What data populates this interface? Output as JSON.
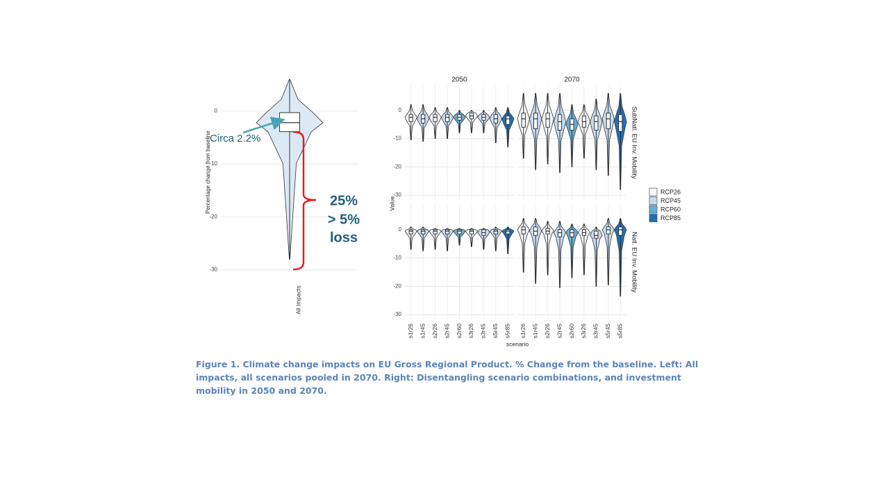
{
  "caption": "Figure 1. Climate change impacts on EU Gross Regional Product. % Change from the baseline. Left: All impacts, all scenarios pooled in 2070. Right: Disentangling scenario combinations, and investment mobility in 2050 and 2070.",
  "chart_data": [
    {
      "type": "violin",
      "ylabel": "Percentage change from baseline",
      "categories": [
        "All Impacts"
      ],
      "color": "#dce9f5",
      "stats": [
        [
          -28,
          -3.9,
          -2.2,
          -0.3,
          6
        ]
      ],
      "ylim": [
        -31.5,
        5.5
      ],
      "yticks": [
        0,
        -10,
        -20,
        -30
      ],
      "grid": true,
      "annotations": [
        "Circa 2.2%",
        "25%",
        "> 5%",
        "loss"
      ]
    },
    {
      "type": "violin",
      "ylabel": "Value",
      "xlabel": "scenario",
      "columns": [
        "2050",
        "2070"
      ],
      "rows": [
        "SubNatl. EU Inv. Mobility",
        "Natl. EU Inv. Mobility"
      ],
      "categories": [
        "s1r26",
        "s1r45",
        "s2r26",
        "s2r45",
        "s2r60",
        "s3r26",
        "s3r45",
        "s5r45",
        "s5r85"
      ],
      "colors": [
        "#f4f7fb",
        "#c6dbef",
        "#f4f7fb",
        "#c6dbef",
        "#6baed6",
        "#f4f7fb",
        "#c6dbef",
        "#c6dbef",
        "#2171b5"
      ],
      "legend": [
        {
          "name": "RCP26",
          "color": "#f4f7fb"
        },
        {
          "name": "RCP45",
          "color": "#c6dbef"
        },
        {
          "name": "RCP60",
          "color": "#6baed6"
        },
        {
          "name": "RCP85",
          "color": "#2171b5"
        }
      ],
      "ylim": [
        -31.7,
        8.8
      ],
      "yticks": [
        0,
        -10,
        -20,
        -30
      ],
      "grid": true,
      "panels": [
        [
          [
            [
              -10.5,
              -4,
              -2.5,
              -1.5,
              2
            ],
            [
              -11,
              -4.5,
              -3,
              -1.5,
              2
            ],
            [
              -10,
              -4,
              -2.5,
              -1.5,
              1
            ],
            [
              -10,
              -4,
              -2.5,
              -1.5,
              1
            ],
            [
              -8,
              -3.5,
              -2.5,
              -1.5,
              0
            ],
            [
              -8,
              -3,
              -2,
              -1,
              0
            ],
            [
              -8,
              -3.5,
              -2.5,
              -1.5,
              0
            ],
            [
              -11.5,
              -4.5,
              -3,
              -1.5,
              1
            ],
            [
              -13,
              -5,
              -3,
              -2,
              1
            ]
          ],
          [
            [
              -17,
              -6,
              -3,
              -1,
              6
            ],
            [
              -21,
              -6.5,
              -3,
              -1,
              6
            ],
            [
              -19,
              -6,
              -3,
              -1,
              6
            ],
            [
              -22,
              -7,
              -4,
              -1.5,
              6
            ],
            [
              -20,
              -7,
              -5,
              -3,
              2
            ],
            [
              -17,
              -6,
              -4,
              -2,
              2
            ],
            [
              -21,
              -7,
              -4,
              -2,
              4
            ],
            [
              -23,
              -6.5,
              -3,
              -1,
              6
            ],
            [
              -28,
              -7.5,
              -4,
              -1.5,
              6
            ]
          ]
        ],
        [
          [
            [
              -7,
              -1.5,
              -0.5,
              0,
              1
            ],
            [
              -7.5,
              -1.5,
              -0.5,
              0,
              1
            ],
            [
              -7,
              -1.5,
              -0.5,
              0,
              0.5
            ],
            [
              -7.5,
              -1.5,
              -0.5,
              0,
              0.5
            ],
            [
              -5.5,
              -1.5,
              -0.5,
              0,
              0.5
            ],
            [
              -6,
              -1.5,
              -0.5,
              0,
              0.5
            ],
            [
              -7,
              -2,
              -1,
              0,
              0.5
            ],
            [
              -7.5,
              -1.5,
              -0.5,
              0,
              1
            ],
            [
              -8.5,
              -1.5,
              -0.5,
              0,
              1
            ]
          ],
          [
            [
              -15,
              -1.5,
              0,
              1,
              4
            ],
            [
              -19,
              -2,
              -0.5,
              1,
              4
            ],
            [
              -16,
              -1.5,
              -0.5,
              0.5,
              3
            ],
            [
              -20.5,
              -2.5,
              -1,
              0,
              3
            ],
            [
              -17,
              -2.5,
              -1,
              0,
              2
            ],
            [
              -16,
              -2,
              -1,
              0,
              2
            ],
            [
              -20,
              -3,
              -2,
              -0.5,
              1
            ],
            [
              -19.5,
              -1.5,
              0,
              1,
              4
            ],
            [
              -23.5,
              -2,
              0,
              1,
              4
            ]
          ]
        ]
      ]
    }
  ]
}
